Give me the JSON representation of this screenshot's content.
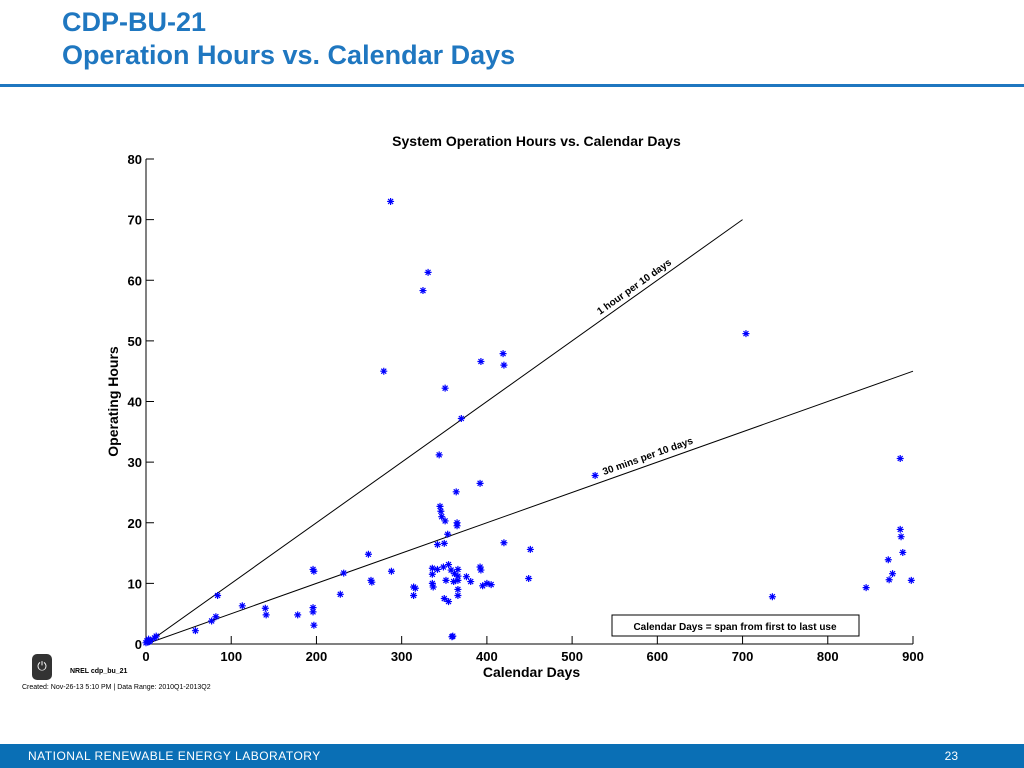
{
  "slide": {
    "title_line1": "CDP-BU-21",
    "title_line2": "Operation Hours vs. Calendar Days",
    "footer_org": "NATIONAL RENEWABLE ENERGY LABORATORY",
    "page_number": "23",
    "nrel_code": "NREL cdp_bu_21",
    "created": "Created: Nov-26-13  5:10 PM | Data Range: 2010Q1-2013Q2",
    "colors": {
      "title": "#1F77C0",
      "footer": "#0A6FB5",
      "markers": "#0000FF"
    },
    "logo_icon": "power-icon"
  },
  "chart_data": {
    "type": "scatter",
    "title": "System Operation Hours vs. Calendar Days",
    "xlabel": "Calendar Days",
    "ylabel": "Operating Hours",
    "xlim": [
      0,
      900
    ],
    "ylim": [
      0,
      80
    ],
    "xticks": [
      0,
      100,
      200,
      300,
      400,
      500,
      600,
      700,
      800,
      900
    ],
    "yticks": [
      0,
      10,
      20,
      30,
      40,
      50,
      60,
      70,
      80
    ],
    "grid": false,
    "series": [
      {
        "marker": "asterisk",
        "color": "#0000FF",
        "points": [
          [
            0,
            0.2
          ],
          [
            1,
            0.5
          ],
          [
            2,
            0.3
          ],
          [
            3,
            0.8
          ],
          [
            4,
            0.4
          ],
          [
            5,
            0.6
          ],
          [
            10,
            1.0
          ],
          [
            12,
            1.3
          ],
          [
            58,
            2.2
          ],
          [
            77,
            3.8
          ],
          [
            82,
            4.5
          ],
          [
            84,
            8.0
          ],
          [
            113,
            6.3
          ],
          [
            140,
            5.9
          ],
          [
            141,
            4.8
          ],
          [
            178,
            4.8
          ],
          [
            196,
            12.3
          ],
          [
            197,
            12.0
          ],
          [
            196,
            6.0
          ],
          [
            196,
            5.3
          ],
          [
            197,
            3.1
          ],
          [
            228,
            8.2
          ],
          [
            232,
            11.7
          ],
          [
            261,
            14.8
          ],
          [
            264,
            10.5
          ],
          [
            265,
            10.2
          ],
          [
            279,
            45.0
          ],
          [
            287,
            73.0
          ],
          [
            288,
            12.0
          ],
          [
            314,
            8.0
          ],
          [
            314,
            9.4
          ],
          [
            316,
            9.2
          ],
          [
            325,
            58.3
          ],
          [
            331,
            61.3
          ],
          [
            336,
            12.5
          ],
          [
            336,
            11.5
          ],
          [
            336,
            10.0
          ],
          [
            337,
            9.4
          ],
          [
            342,
            16.4
          ],
          [
            342,
            12.3
          ],
          [
            344,
            31.2
          ],
          [
            345,
            22.7
          ],
          [
            346,
            21.9
          ],
          [
            347,
            21.0
          ],
          [
            349,
            12.7
          ],
          [
            350,
            16.6
          ],
          [
            350,
            7.5
          ],
          [
            351,
            42.2
          ],
          [
            351,
            20.3
          ],
          [
            352,
            10.5
          ],
          [
            354,
            18.1
          ],
          [
            355,
            13.1
          ],
          [
            355,
            7.0
          ],
          [
            358,
            12.2
          ],
          [
            359,
            1.2
          ],
          [
            360,
            1.3
          ],
          [
            361,
            10.3
          ],
          [
            362,
            11.6
          ],
          [
            364,
            25.1
          ],
          [
            365,
            20.0
          ],
          [
            365,
            19.5
          ],
          [
            366,
            12.3
          ],
          [
            366,
            11.2
          ],
          [
            366,
            10.5
          ],
          [
            366,
            9.0
          ],
          [
            366,
            8.0
          ],
          [
            370,
            37.2
          ],
          [
            376,
            11.1
          ],
          [
            381,
            10.3
          ],
          [
            392,
            26.5
          ],
          [
            392,
            12.7
          ],
          [
            393,
            46.6
          ],
          [
            393,
            12.2
          ],
          [
            395,
            9.6
          ],
          [
            400,
            10.0
          ],
          [
            405,
            9.8
          ],
          [
            419,
            47.9
          ],
          [
            420,
            46.0
          ],
          [
            420,
            16.7
          ],
          [
            449,
            10.8
          ],
          [
            451,
            15.6
          ],
          [
            527,
            27.8
          ],
          [
            704,
            51.2
          ],
          [
            735,
            7.8
          ],
          [
            845,
            9.3
          ],
          [
            871,
            13.9
          ],
          [
            872,
            10.6
          ],
          [
            876,
            11.6
          ],
          [
            885,
            30.6
          ],
          [
            885,
            18.9
          ],
          [
            886,
            17.7
          ],
          [
            888,
            15.1
          ],
          [
            898,
            10.5
          ]
        ]
      }
    ],
    "reference_lines": [
      {
        "label": "1 hour per 10 days",
        "slope": 0.1,
        "x_range": [
          0,
          700
        ]
      },
      {
        "label": "30 mins per 10 days",
        "slope": 0.05,
        "x_range": [
          0,
          900
        ]
      }
    ],
    "annotation": "Calendar Days = span from first to last use"
  }
}
